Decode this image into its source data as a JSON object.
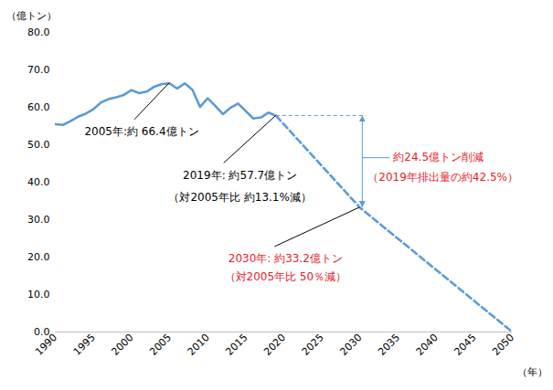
{
  "chart_data": {
    "type": "line",
    "y_label": "（億トン）",
    "x_label": "（年）",
    "x": [
      1990,
      1991,
      1992,
      1993,
      1994,
      1995,
      1996,
      1997,
      1998,
      1999,
      2000,
      2001,
      2002,
      2003,
      2004,
      2005,
      2006,
      2007,
      2008,
      2009,
      2010,
      2011,
      2012,
      2013,
      2014,
      2015,
      2016,
      2017,
      2018,
      2019,
      2030,
      2050
    ],
    "series": [
      {
        "color": "#5b9bd5",
        "line_style": "solid",
        "values": [
          55.5,
          55.3,
          56.3,
          57.5,
          58.3,
          59.5,
          61.3,
          62.2,
          62.7,
          63.3,
          64.6,
          63.8,
          64.2,
          65.5,
          66.2,
          66.4,
          65.0,
          66.4,
          64.7,
          60.1,
          62.4,
          60.4,
          58.2,
          59.9,
          61.0,
          59.0,
          57.0,
          57.3,
          58.6,
          57.7,
          null,
          null
        ]
      },
      {
        "color": "#5b9bd5",
        "line_style": "dashed",
        "values": [
          null,
          null,
          null,
          null,
          null,
          null,
          null,
          null,
          null,
          null,
          null,
          null,
          null,
          null,
          null,
          null,
          null,
          null,
          null,
          null,
          null,
          null,
          null,
          null,
          null,
          null,
          null,
          null,
          null,
          57.7,
          33.2,
          0
        ]
      }
    ],
    "xlim": [
      1990,
      2050
    ],
    "xticks": [
      1990,
      1995,
      2000,
      2005,
      2010,
      2015,
      2020,
      2025,
      2030,
      2035,
      2040,
      2045,
      2050
    ],
    "ylim": [
      0,
      80
    ],
    "yticks": [
      {
        "value": 0,
        "label": "0.0"
      },
      {
        "value": 10,
        "label": "10.0"
      },
      {
        "value": 20,
        "label": "20.0"
      },
      {
        "value": 30,
        "label": "30.0"
      },
      {
        "value": 40,
        "label": "40.0"
      },
      {
        "value": 50,
        "label": "50.0"
      },
      {
        "value": 60,
        "label": "60.0"
      },
      {
        "value": 70,
        "label": "70.0"
      },
      {
        "value": 80,
        "label": "80.0"
      }
    ],
    "grid": false,
    "annotations": [
      {
        "x": 2005,
        "y": 66.4,
        "color": "#000000",
        "lines": [
          "2005年:約 66.4億トン"
        ]
      },
      {
        "x": 2019,
        "y": 57.7,
        "color": "#000000",
        "lines": [
          "2019年: 約57.7億トン",
          "（対2005年比 約13.1%減）"
        ]
      },
      {
        "x": 2030,
        "y": 33.2,
        "color": "#e8202a",
        "lines": [
          "2030年: 約33.2億トン",
          "（対2005年比 50％減）"
        ]
      }
    ],
    "reduction": {
      "x_from": 2019,
      "x": 2030,
      "from": 57.7,
      "to": 33.2,
      "color": "#e8202a",
      "lines": [
        "約24.5億トン削減",
        "（2019年排出量の約42.5%）"
      ]
    }
  }
}
